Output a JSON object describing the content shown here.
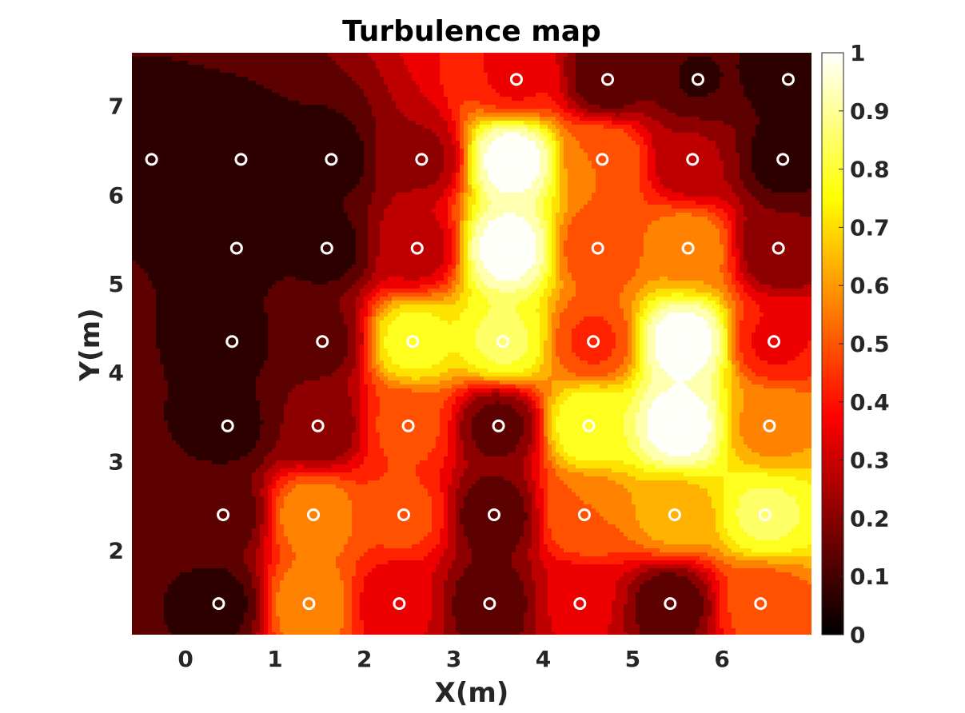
{
  "chart_data": {
    "type": "heatmap",
    "subtype": "filled-contour",
    "title": "Turbulence map",
    "xlabel": "X(m)",
    "ylabel": "Y(m)",
    "xlim": [
      -0.6,
      7.0
    ],
    "ylim": [
      1.05,
      7.6
    ],
    "xticks": [
      "0",
      "1",
      "2",
      "3",
      "4",
      "5",
      "6"
    ],
    "yticks": [
      "2",
      "3",
      "4",
      "5",
      "6",
      "7"
    ],
    "colormap": "hot",
    "levels": 14,
    "colorbar": {
      "min": 0,
      "max": 1,
      "ticks": [
        "0",
        "0.1",
        "0.2",
        "0.3",
        "0.4",
        "0.5",
        "0.6",
        "0.7",
        "0.8",
        "0.9",
        "1"
      ]
    },
    "grid": false,
    "sensor_marker": "white circle",
    "sensor_rows": [
      {
        "y": 7.3,
        "x": [
          3.7,
          4.72,
          5.73,
          6.74
        ],
        "values": [
          0.35,
          0.1,
          0.07,
          0.05
        ]
      },
      {
        "y": 6.4,
        "x": [
          -0.38,
          0.62,
          1.63,
          2.64,
          3.65,
          4.66,
          5.67,
          6.68
        ],
        "values": [
          0.05,
          0.05,
          0.05,
          0.2,
          0.97,
          0.5,
          0.22,
          0.05
        ]
      },
      {
        "y": 5.4,
        "x": [
          0.57,
          1.58,
          2.59,
          3.6,
          4.61,
          5.62,
          6.63
        ],
        "values": [
          0.05,
          0.05,
          0.25,
          0.97,
          0.45,
          0.55,
          0.15
        ]
      },
      {
        "y": 4.35,
        "x": [
          0.52,
          1.53,
          2.54,
          3.55,
          4.56,
          5.57,
          6.58
        ],
        "values": [
          0.05,
          0.12,
          0.75,
          0.8,
          0.42,
          0.97,
          0.35
        ]
      },
      {
        "y": 3.4,
        "x": [
          0.47,
          1.48,
          2.49,
          3.5,
          4.51,
          5.52,
          6.53
        ],
        "values": [
          0.05,
          0.15,
          0.45,
          0.12,
          0.78,
          0.97,
          0.55
        ]
      },
      {
        "y": 2.4,
        "x": [
          0.42,
          1.43,
          2.44,
          3.45,
          4.46,
          5.47,
          6.48
        ],
        "values": [
          0.1,
          0.55,
          0.45,
          0.1,
          0.5,
          0.6,
          0.8
        ]
      },
      {
        "y": 1.4,
        "x": [
          0.37,
          1.38,
          2.39,
          3.4,
          4.41,
          5.42,
          6.43
        ],
        "values": [
          0.05,
          0.55,
          0.3,
          0.1,
          0.3,
          0.1,
          0.45
        ]
      }
    ]
  }
}
